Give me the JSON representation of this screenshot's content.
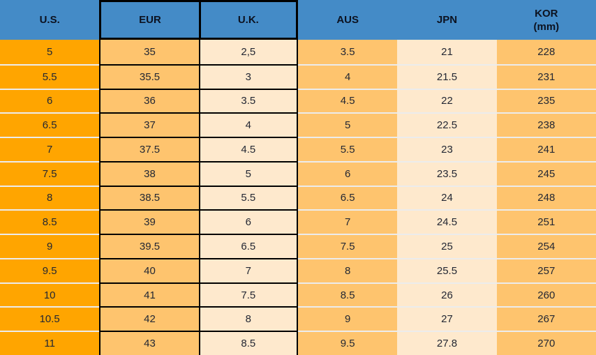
{
  "table": {
    "columns": [
      {
        "key": "us",
        "label": "U.S."
      },
      {
        "key": "eur",
        "label": "EUR"
      },
      {
        "key": "uk",
        "label": "U.K."
      },
      {
        "key": "aus",
        "label": "AUS"
      },
      {
        "key": "jpn",
        "label": "JPN"
      },
      {
        "key": "kor",
        "label": "KOR",
        "sublabel": "(mm)"
      }
    ],
    "rows": [
      [
        "5",
        "35",
        "2,5",
        "3.5",
        "21",
        "228"
      ],
      [
        "5.5",
        "35.5",
        "3",
        "4",
        "21.5",
        "231"
      ],
      [
        "6",
        "36",
        "3.5",
        "4.5",
        "22",
        "235"
      ],
      [
        "6.5",
        "37",
        "4",
        "5",
        "22.5",
        "238"
      ],
      [
        "7",
        "37.5",
        "4.5",
        "5.5",
        "23",
        "241"
      ],
      [
        "7.5",
        "38",
        "5",
        "6",
        "23.5",
        "245"
      ],
      [
        "8",
        "38.5",
        "5.5",
        "6.5",
        "24",
        "248"
      ],
      [
        "8.5",
        "39",
        "6",
        "7",
        "24.5",
        "251"
      ],
      [
        "9",
        "39.5",
        "6.5",
        "7.5",
        "25",
        "254"
      ],
      [
        "9.5",
        "40",
        "7",
        "8",
        "25.5",
        "257"
      ],
      [
        "10",
        "41",
        "7.5",
        "8.5",
        "26",
        "260"
      ],
      [
        "10.5",
        "42",
        "8",
        "9",
        "27",
        "267"
      ],
      [
        "11",
        "43",
        "8.5",
        "9.5",
        "27.8",
        "270"
      ]
    ]
  },
  "colors": {
    "header_bg": "#448bc7",
    "us_column": "#ffa500",
    "light_orange_columns": "#fec46e",
    "cream_columns": "#fee9cd",
    "black_border": "#000000",
    "row_separator": "#ececec",
    "cell_text": "#232733",
    "header_text": "#0c1220"
  },
  "chart_data": {
    "type": "table",
    "columns": [
      "U.S.",
      "EUR",
      "U.K.",
      "AUS",
      "JPN",
      "KOR (mm)"
    ],
    "rows": [
      [
        "5",
        "35",
        "2,5",
        "3.5",
        "21",
        "228"
      ],
      [
        "5.5",
        "35.5",
        "3",
        "4",
        "21.5",
        "231"
      ],
      [
        "6",
        "36",
        "3.5",
        "4.5",
        "22",
        "235"
      ],
      [
        "6.5",
        "37",
        "4",
        "5",
        "22.5",
        "238"
      ],
      [
        "7",
        "37.5",
        "4.5",
        "5.5",
        "23",
        "241"
      ],
      [
        "7.5",
        "38",
        "5",
        "6",
        "23.5",
        "245"
      ],
      [
        "8",
        "38.5",
        "5.5",
        "6.5",
        "24",
        "248"
      ],
      [
        "8.5",
        "39",
        "6",
        "7",
        "24.5",
        "251"
      ],
      [
        "9",
        "39.5",
        "6.5",
        "7.5",
        "25",
        "254"
      ],
      [
        "9.5",
        "40",
        "7",
        "8",
        "25.5",
        "257"
      ],
      [
        "10",
        "41",
        "7.5",
        "8.5",
        "26",
        "260"
      ],
      [
        "10.5",
        "42",
        "8",
        "9",
        "27",
        "267"
      ],
      [
        "11",
        "43",
        "8.5",
        "9.5",
        "27.8",
        "270"
      ]
    ]
  }
}
